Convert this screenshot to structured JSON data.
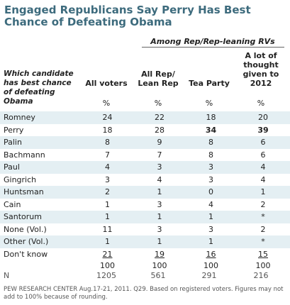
{
  "title": "Engaged Republicans Say Perry Has Best Chance of Defeating Obama",
  "subhead": "Among Rep/Rep-leaning RVs",
  "question_label": "Which candidate has best chance of defeating Obama",
  "percent_symbol": "%",
  "n_label": "N",
  "footer": "PEW RESEARCH CENTER Aug.17-21, 2011. Q29. Based on registered voters. Figures may not add to 100% because of rounding.",
  "chart_data": {
    "type": "table",
    "columns": [
      "All voters",
      "All Rep/ Lean Rep",
      "Tea Party",
      "A lot of thought given to 2012"
    ],
    "rows": [
      {
        "label": "Romney",
        "values": [
          "24",
          "22",
          "18",
          "20"
        ]
      },
      {
        "label": "Perry",
        "values": [
          "18",
          "28",
          "34",
          "39"
        ]
      },
      {
        "label": "Palin",
        "values": [
          "8",
          "9",
          "8",
          "6"
        ]
      },
      {
        "label": "Bachmann",
        "values": [
          "7",
          "7",
          "8",
          "6"
        ]
      },
      {
        "label": "Paul",
        "values": [
          "4",
          "3",
          "3",
          "4"
        ]
      },
      {
        "label": "Gingrich",
        "values": [
          "3",
          "4",
          "3",
          "4"
        ]
      },
      {
        "label": "Huntsman",
        "values": [
          "2",
          "1",
          "0",
          "1"
        ]
      },
      {
        "label": "Cain",
        "values": [
          "1",
          "3",
          "4",
          "2"
        ]
      },
      {
        "label": "Santorum",
        "values": [
          "1",
          "1",
          "1",
          "*"
        ]
      },
      {
        "label": "None (Vol.)",
        "values": [
          "11",
          "3",
          "3",
          "2"
        ]
      },
      {
        "label": "Other (Vol.)",
        "values": [
          "1",
          "1",
          "1",
          "*"
        ]
      },
      {
        "label": "Don't know",
        "values": [
          "21",
          "19",
          "16",
          "15"
        ]
      }
    ],
    "totals": [
      "100",
      "100",
      "100",
      "100"
    ],
    "n": [
      "1205",
      "561",
      "291",
      "216"
    ]
  }
}
